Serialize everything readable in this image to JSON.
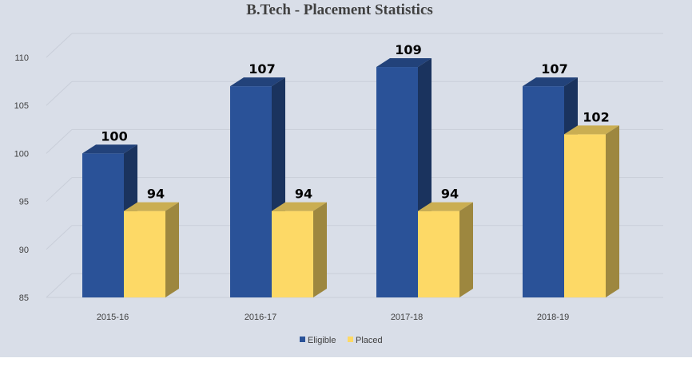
{
  "chart_data": {
    "type": "bar",
    "title": "B.Tech - Placement Statistics",
    "xlabel": "",
    "ylabel": "",
    "categories": [
      "2015-16",
      "2016-17",
      "2017-18",
      "2018-19"
    ],
    "series": [
      {
        "name": "Eligible",
        "values": [
          100,
          107,
          109,
          107
        ],
        "color": "#2a5298"
      },
      {
        "name": "Placed",
        "values": [
          94,
          94,
          94,
          102
        ],
        "color": "#fdd966"
      }
    ],
    "ylim": [
      85,
      110
    ],
    "yticks": [
      "85",
      "90",
      "95",
      "100",
      "105",
      "110"
    ],
    "grid": true,
    "three_d": true,
    "legend_position": "bottom",
    "data_labels": true
  }
}
